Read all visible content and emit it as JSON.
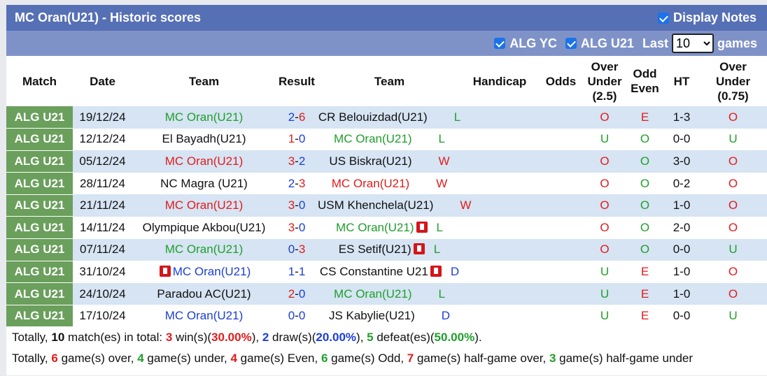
{
  "header": {
    "title": "MC Oran(U21) - Historic scores",
    "display_notes": "Display Notes"
  },
  "filters": {
    "yc": "ALG YC",
    "u21": "ALG U21",
    "last": "Last",
    "last_value": "10",
    "games": "games"
  },
  "columns": {
    "match": "Match",
    "date": "Date",
    "team": "Team",
    "result": "Result",
    "team2": "Team",
    "handicap": "Handicap",
    "odds": "Odds",
    "ou25": [
      "Over",
      "Under",
      "(2.5)"
    ],
    "oe": [
      "Odd",
      "Even"
    ],
    "ht": "HT",
    "ou075": [
      "Over",
      "Under",
      "(0.75)"
    ]
  },
  "rows": [
    {
      "league": "ALG U21",
      "date": "19/12/24",
      "home": "MC Oran(U21)",
      "home_color": "green",
      "home_card": false,
      "hs": "2",
      "as": "6",
      "hs_color": "blue",
      "as_color": "red",
      "away": "CR Belouizdad(U21)",
      "away_color": "dark",
      "away_card": false,
      "res": "L",
      "res_color": "green",
      "ou": "O",
      "ou_color": "red",
      "oe": "E",
      "oe_color": "red",
      "ht": "1-3",
      "ou2": "O",
      "ou2_color": "red"
    },
    {
      "league": "ALG U21",
      "date": "12/12/24",
      "home": "El Bayadh(U21)",
      "home_color": "dark",
      "home_card": false,
      "hs": "1",
      "as": "0",
      "hs_color": "red",
      "as_color": "blue",
      "away": "MC Oran(U21)",
      "away_color": "green",
      "away_card": false,
      "res": "L",
      "res_color": "green",
      "ou": "U",
      "ou_color": "green",
      "oe": "O",
      "oe_color": "green",
      "ht": "0-0",
      "ou2": "U",
      "ou2_color": "green"
    },
    {
      "league": "ALG U21",
      "date": "05/12/24",
      "home": "MC Oran(U21)",
      "home_color": "red",
      "home_card": false,
      "hs": "3",
      "as": "2",
      "hs_color": "red",
      "as_color": "blue",
      "away": "US Biskra(U21)",
      "away_color": "dark",
      "away_card": false,
      "res": "W",
      "res_color": "red",
      "ou": "O",
      "ou_color": "red",
      "oe": "O",
      "oe_color": "green",
      "ht": "3-0",
      "ou2": "O",
      "ou2_color": "red"
    },
    {
      "league": "ALG U21",
      "date": "28/11/24",
      "home": "NC Magra (U21)",
      "home_color": "dark",
      "home_card": false,
      "hs": "2",
      "as": "3",
      "hs_color": "blue",
      "as_color": "red",
      "away": "MC Oran(U21)",
      "away_color": "red",
      "away_card": false,
      "res": "W",
      "res_color": "red",
      "ou": "O",
      "ou_color": "red",
      "oe": "O",
      "oe_color": "green",
      "ht": "0-2",
      "ou2": "O",
      "ou2_color": "red"
    },
    {
      "league": "ALG U21",
      "date": "21/11/24",
      "home": "MC Oran(U21)",
      "home_color": "red",
      "home_card": false,
      "hs": "3",
      "as": "0",
      "hs_color": "red",
      "as_color": "blue",
      "away": "USM Khenchela(U21)",
      "away_color": "dark",
      "away_card": false,
      "res": "W",
      "res_color": "red",
      "ou": "O",
      "ou_color": "red",
      "oe": "O",
      "oe_color": "green",
      "ht": "1-0",
      "ou2": "O",
      "ou2_color": "red"
    },
    {
      "league": "ALG U21",
      "date": "14/11/24",
      "home": "Olympique Akbou(U21)",
      "home_color": "dark",
      "home_card": false,
      "hs": "3",
      "as": "0",
      "hs_color": "red",
      "as_color": "blue",
      "away": "MC Oran(U21)",
      "away_color": "green",
      "away_card": true,
      "res": "L",
      "res_color": "green",
      "ou": "O",
      "ou_color": "red",
      "oe": "O",
      "oe_color": "green",
      "ht": "2-0",
      "ou2": "O",
      "ou2_color": "red"
    },
    {
      "league": "ALG U21",
      "date": "07/11/24",
      "home": "MC Oran(U21)",
      "home_color": "green",
      "home_card": false,
      "hs": "0",
      "as": "3",
      "hs_color": "blue",
      "as_color": "red",
      "away": "ES Setif(U21)",
      "away_color": "dark",
      "away_card": true,
      "res": "L",
      "res_color": "green",
      "ou": "O",
      "ou_color": "red",
      "oe": "O",
      "oe_color": "green",
      "ht": "0-0",
      "ou2": "U",
      "ou2_color": "green"
    },
    {
      "league": "ALG U21",
      "date": "31/10/24",
      "home": "MC Oran(U21)",
      "home_color": "blue",
      "home_card": true,
      "hs": "1",
      "as": "1",
      "hs_color": "blue",
      "as_color": "blue",
      "away": "CS Constantine U21",
      "away_color": "dark",
      "away_card": true,
      "res": "D",
      "res_color": "blue",
      "ou": "U",
      "ou_color": "green",
      "oe": "E",
      "oe_color": "red",
      "ht": "1-0",
      "ou2": "O",
      "ou2_color": "red"
    },
    {
      "league": "ALG U21",
      "date": "24/10/24",
      "home": "Paradou AC(U21)",
      "home_color": "dark",
      "home_card": false,
      "hs": "2",
      "as": "0",
      "hs_color": "red",
      "as_color": "blue",
      "away": "MC Oran(U21)",
      "away_color": "green",
      "away_card": false,
      "res": "L",
      "res_color": "green",
      "ou": "U",
      "ou_color": "green",
      "oe": "E",
      "oe_color": "red",
      "ht": "1-0",
      "ou2": "O",
      "ou2_color": "red"
    },
    {
      "league": "ALG U21",
      "date": "17/10/24",
      "home": "MC Oran(U21)",
      "home_color": "blue",
      "home_card": false,
      "hs": "0",
      "as": "0",
      "hs_color": "blue",
      "as_color": "blue",
      "away": "JS Kabylie(U21)",
      "away_color": "dark",
      "away_card": false,
      "res": "D",
      "res_color": "blue",
      "ou": "U",
      "ou_color": "green",
      "oe": "E",
      "oe_color": "red",
      "ht": "0-0",
      "ou2": "U",
      "ou2_color": "green"
    }
  ],
  "summary1": [
    {
      "t": "Totally, ",
      "c": "dark"
    },
    {
      "t": "10",
      "c": "bold"
    },
    {
      "t": " match(es) in total: ",
      "c": "dark"
    },
    {
      "t": "3",
      "c": "redb"
    },
    {
      "t": " win(s)(",
      "c": "dark"
    },
    {
      "t": "30.00%",
      "c": "redb"
    },
    {
      "t": "), ",
      "c": "dark"
    },
    {
      "t": "2",
      "c": "blueb"
    },
    {
      "t": " draw(s)(",
      "c": "dark"
    },
    {
      "t": "20.00%",
      "c": "blueb"
    },
    {
      "t": "), ",
      "c": "dark"
    },
    {
      "t": "5",
      "c": "greenb"
    },
    {
      "t": " defeat(es)(",
      "c": "dark"
    },
    {
      "t": "50.00%",
      "c": "greenb"
    },
    {
      "t": ").",
      "c": "dark"
    }
  ],
  "summary2": [
    {
      "t": "Totally, ",
      "c": "dark"
    },
    {
      "t": "6",
      "c": "redb"
    },
    {
      "t": " game(s) over, ",
      "c": "dark"
    },
    {
      "t": "4",
      "c": "greenb"
    },
    {
      "t": " game(s) under, ",
      "c": "dark"
    },
    {
      "t": "4",
      "c": "redb"
    },
    {
      "t": " game(s) Even, ",
      "c": "dark"
    },
    {
      "t": "6",
      "c": "greenb"
    },
    {
      "t": " game(s) Odd, ",
      "c": "dark"
    },
    {
      "t": "7",
      "c": "redb"
    },
    {
      "t": " game(s) half-game over, ",
      "c": "dark"
    },
    {
      "t": "3",
      "c": "greenb"
    },
    {
      "t": " game(s) half-game under",
      "c": "dark"
    }
  ],
  "colors": {
    "red": "#e11c1c",
    "green": "#1f9f2a",
    "blue": "#1c3fd6",
    "dark": "#111111",
    "header": "#5670b6",
    "league": "#6a9f5c"
  }
}
